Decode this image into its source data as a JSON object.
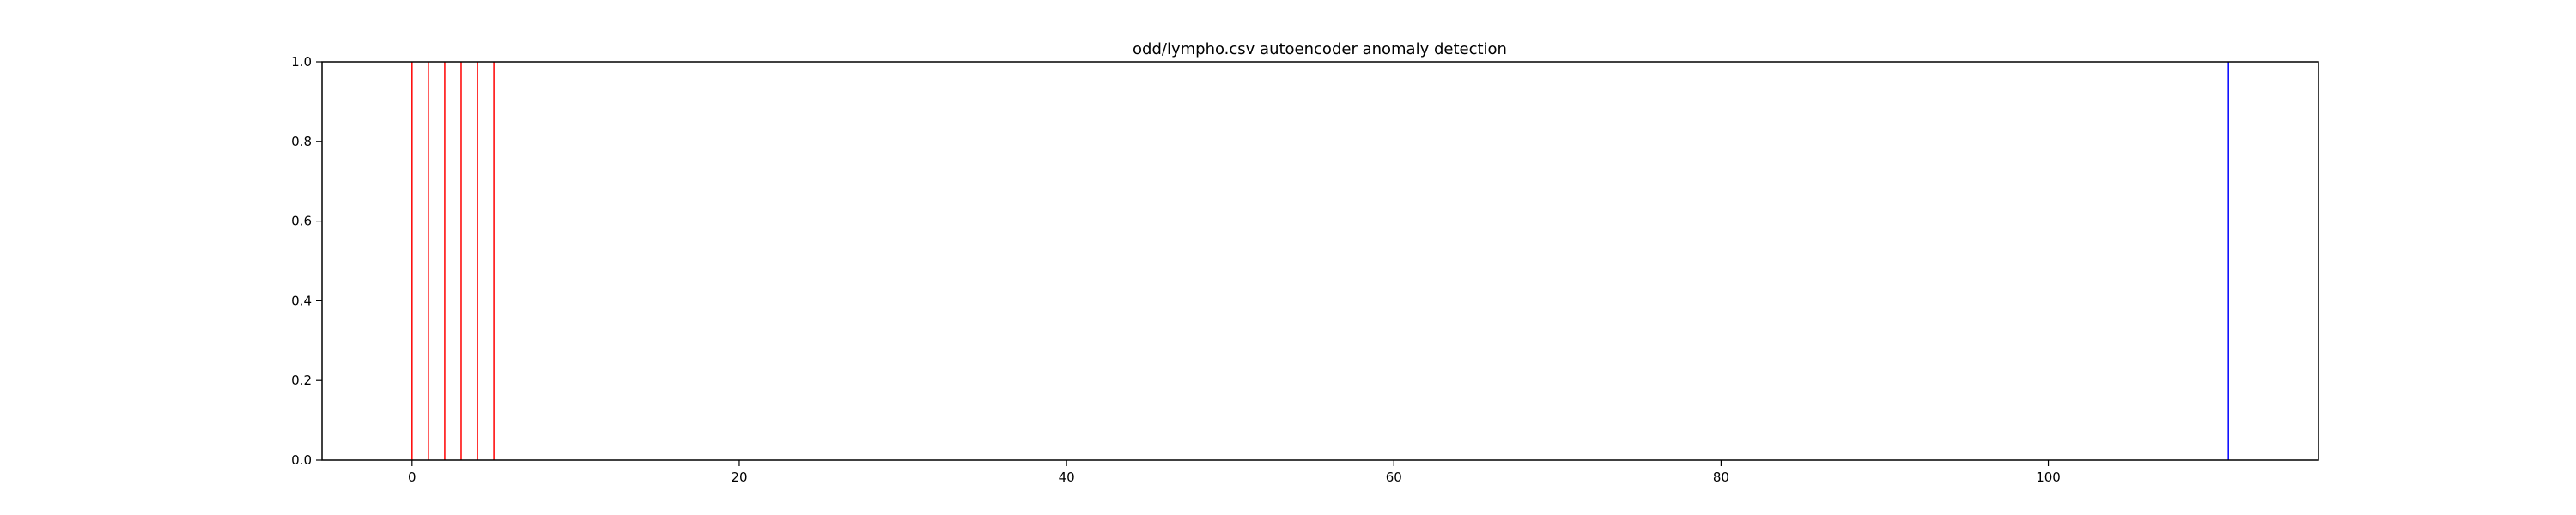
{
  "chart_data": {
    "type": "line",
    "title": "odd/lympho.csv autoencoder anomaly detection",
    "xlabel": "",
    "ylabel": "",
    "xlim": [
      -5.5,
      116.5
    ],
    "ylim": [
      0,
      1
    ],
    "x_ticks": [
      0,
      20,
      40,
      60,
      80,
      100
    ],
    "y_ticks": [
      "0.0",
      "0.2",
      "0.4",
      "0.6",
      "0.8",
      "1.0"
    ],
    "grid": false,
    "legend": "none",
    "series": [
      {
        "color": "#ff0000",
        "x": [
          0,
          1,
          2,
          3,
          4,
          5
        ],
        "y_range": [
          0,
          1
        ]
      },
      {
        "color": "#0000ff",
        "x": [
          111
        ],
        "y_range": [
          0,
          1
        ]
      }
    ]
  }
}
